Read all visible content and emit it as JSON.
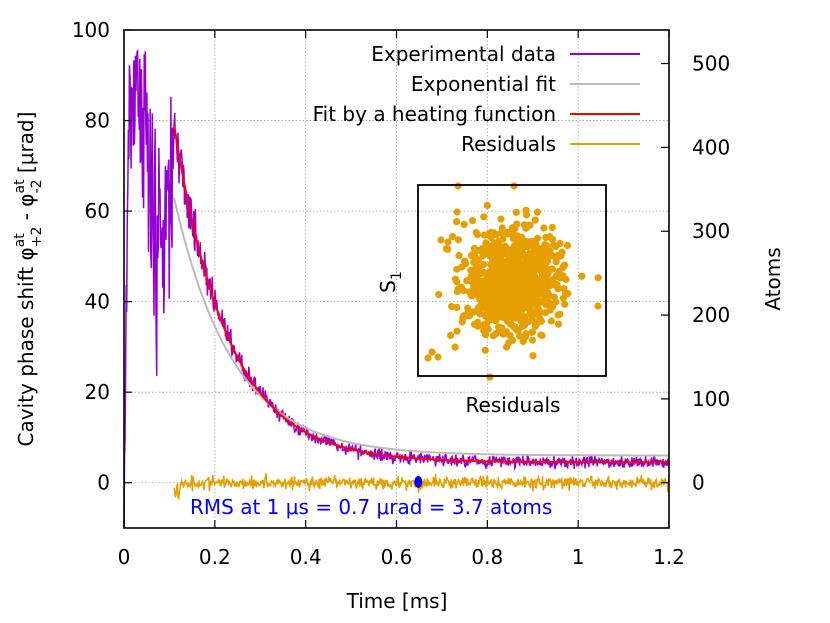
{
  "chart_data": {
    "type": "line",
    "xlabel": "Time [ms]",
    "ylabel_left": {
      "main": "Cavity phase shift ",
      "phi1": "φ",
      "sup1": "at",
      "sub1": "+2",
      "mid": " - ",
      "phi2": "φ",
      "sup2": "at",
      "sub2": "-2",
      "unit": " [μrad]"
    },
    "ylabel_right": "Atoms",
    "xlim": [
      0,
      1.2
    ],
    "ylim_left": [
      -10,
      100
    ],
    "ylim_right": [
      -54,
      540
    ],
    "xticks": [
      "0",
      "0.2",
      "0.4",
      "0.6",
      "0.8",
      "1",
      "1.2"
    ],
    "xtick_values": [
      0,
      0.2,
      0.4,
      0.6,
      0.8,
      1.0,
      1.2
    ],
    "yticks_left": [
      "0",
      "20",
      "40",
      "60",
      "80",
      "100"
    ],
    "ytick_values_left": [
      0,
      20,
      40,
      60,
      80,
      100
    ],
    "yticks_right": [
      "0",
      "100",
      "200",
      "300",
      "400",
      "500"
    ],
    "ytick_values_right": [
      0,
      100,
      200,
      300,
      400,
      500
    ],
    "grid": true,
    "legend_position": "top-right",
    "legend": [
      "Experimental data",
      "Exponential fit",
      "Fit by a heating function",
      "Residuals"
    ],
    "colors": {
      "experimental": "#9400d3",
      "exponential": "#bbbbbb",
      "heating": "#ff0000",
      "residuals": "#e69f00",
      "annotation": "#0000ff"
    },
    "series": [
      {
        "name": "Experimental data",
        "kind": "noisy-decay",
        "x_start": 0.0,
        "x_end": 1.2,
        "spike_start": 0.0,
        "spike_end": 0.11,
        "spike_peak": 96
      },
      {
        "name": "Exponential fit",
        "kind": "exponential",
        "x_start": 0.11,
        "x_end": 1.2,
        "y_start": 63,
        "y_end": 6
      },
      {
        "name": "Fit by a heating function",
        "kind": "heating",
        "x_start": 0.11,
        "x_end": 1.2,
        "y_start": 79,
        "y_end": 4.5
      },
      {
        "name": "Residuals",
        "kind": "noise",
        "x_start": 0.11,
        "x_end": 1.2,
        "center": 0,
        "amplitude": 1.2
      }
    ],
    "marker": {
      "x": 0.648,
      "y": 0.2
    },
    "annotation": "RMS at 1 μs = 0.7 μrad = 3.7 atoms",
    "inset": {
      "ylabel": "S",
      "ylabel_sub": "1",
      "xlabel": "Residuals",
      "kind": "scatter-cloud",
      "points": 900
    }
  }
}
